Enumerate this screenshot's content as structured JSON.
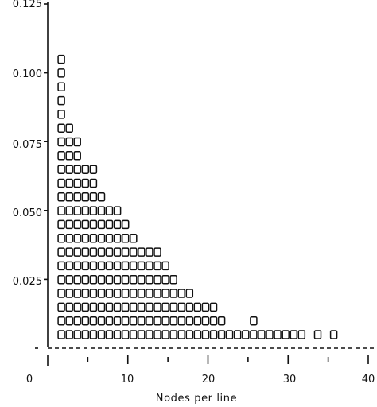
{
  "chart_data": {
    "type": "scatter",
    "marker": "open-square",
    "title": "",
    "xlabel": "Nodes per line",
    "ylabel": "",
    "xlim": [
      0,
      40
    ],
    "ylim": [
      0,
      0.125
    ],
    "x_ticks": [
      0,
      10,
      20,
      30,
      40
    ],
    "x_tick_labels": [
      "0",
      "10",
      "20",
      "30",
      "40"
    ],
    "y_ticks": [
      0.025,
      0.05,
      0.075,
      0.1,
      0.125
    ],
    "y_tick_labels": [
      "0.025",
      "0.050",
      "0.075",
      "0.100",
      "0.125"
    ],
    "columns": [
      {
        "x": 1,
        "count": 21
      },
      {
        "x": 2,
        "count": 16
      },
      {
        "x": 3,
        "count": 15
      },
      {
        "x": 4,
        "count": 13
      },
      {
        "x": 5,
        "count": 13
      },
      {
        "x": 6,
        "count": 11
      },
      {
        "x": 7,
        "count": 10
      },
      {
        "x": 8,
        "count": 10
      },
      {
        "x": 9,
        "count": 9
      },
      {
        "x": 10,
        "count": 8
      },
      {
        "x": 11,
        "count": 7
      },
      {
        "x": 12,
        "count": 7
      },
      {
        "x": 13,
        "count": 7
      },
      {
        "x": 14,
        "count": 6
      },
      {
        "x": 15,
        "count": 5
      },
      {
        "x": 16,
        "count": 4
      },
      {
        "x": 17,
        "count": 4
      },
      {
        "x": 18,
        "count": 3
      },
      {
        "x": 19,
        "count": 3
      },
      {
        "x": 20,
        "count": 3
      },
      {
        "x": 21,
        "count": 2
      },
      {
        "x": 22,
        "count": 1
      },
      {
        "x": 23,
        "count": 1
      },
      {
        "x": 24,
        "count": 1
      },
      {
        "x": 25,
        "count": 2
      },
      {
        "x": 26,
        "count": 1
      },
      {
        "x": 27,
        "count": 1
      },
      {
        "x": 28,
        "count": 1
      },
      {
        "x": 29,
        "count": 1
      },
      {
        "x": 30,
        "count": 1
      },
      {
        "x": 31,
        "count": 1
      },
      {
        "x": 33,
        "count": 1
      },
      {
        "x": 35,
        "count": 1
      }
    ]
  }
}
